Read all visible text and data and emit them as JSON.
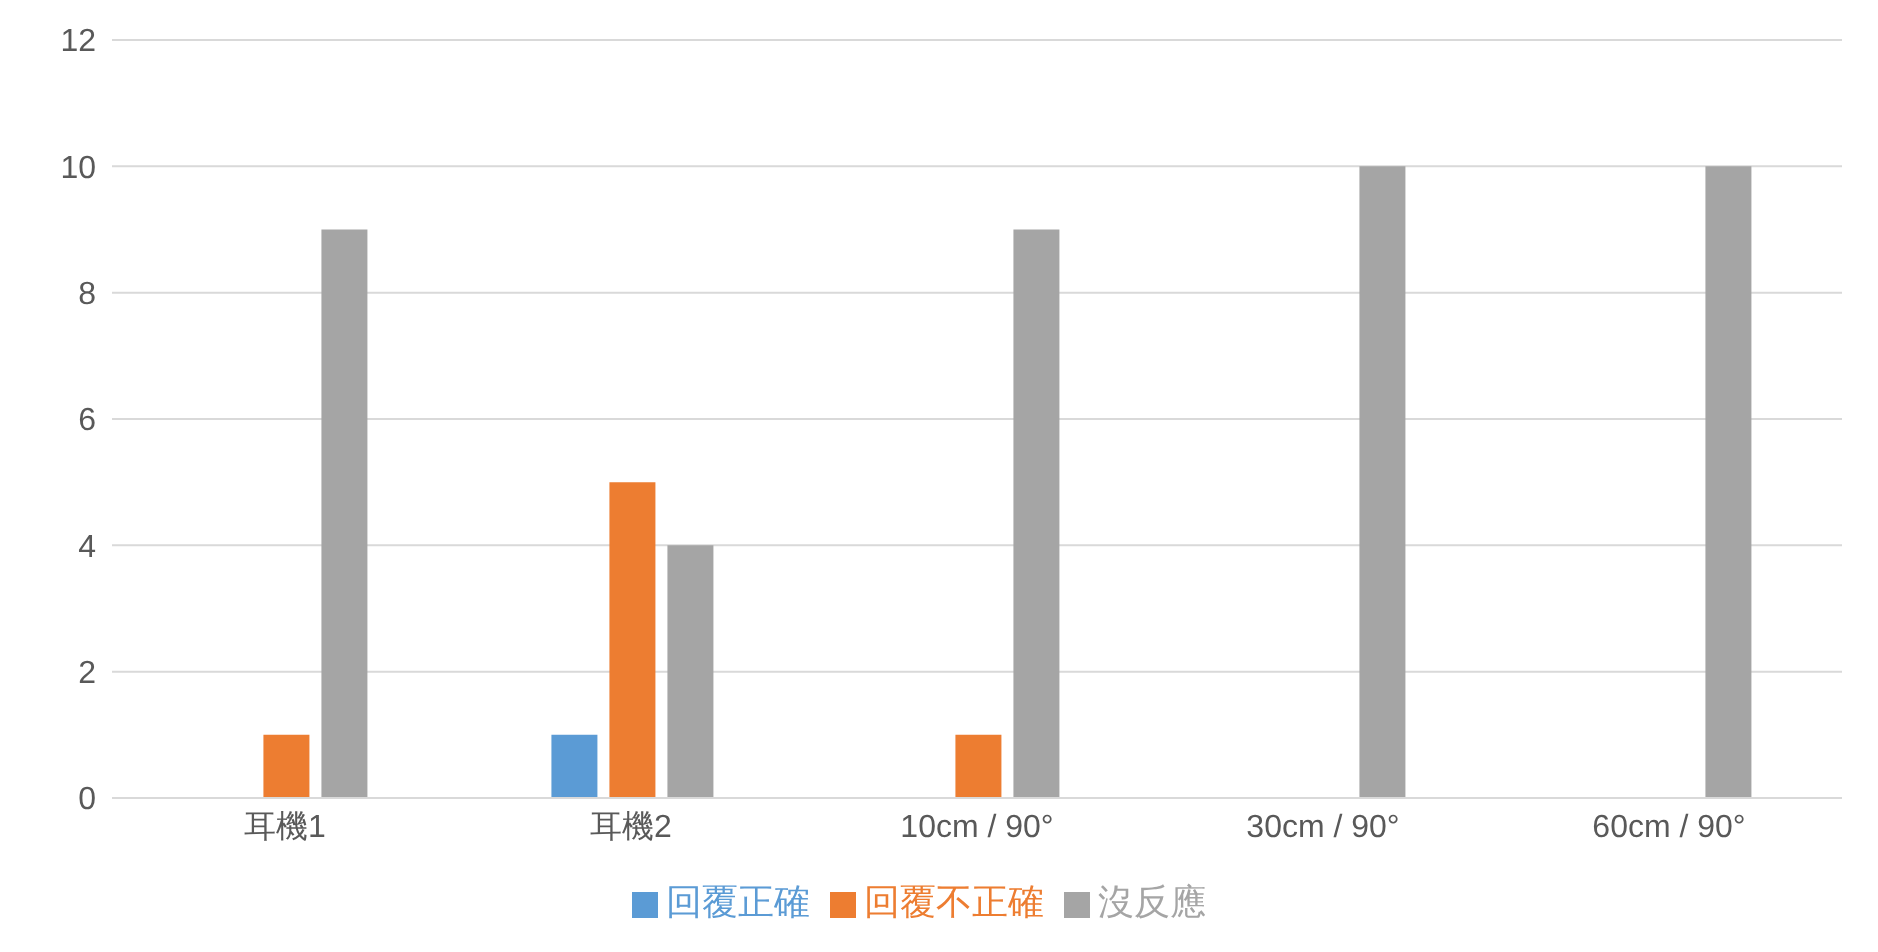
{
  "chart_data": {
    "type": "bar",
    "categories": [
      "耳機1",
      "耳機2",
      "10cm / 90°",
      "30cm / 90°",
      "60cm / 90°"
    ],
    "series": [
      {
        "name": "回覆正確",
        "color": "#5b9bd5",
        "values": [
          0,
          1,
          0,
          0,
          0
        ]
      },
      {
        "name": "回覆不正確",
        "color": "#ed7d31",
        "values": [
          1,
          5,
          1,
          0,
          0
        ]
      },
      {
        "name": "沒反應",
        "color": "#a5a5a5",
        "values": [
          9,
          4,
          9,
          10,
          10
        ]
      }
    ],
    "ylim": [
      0,
      12
    ],
    "yticks": [
      0,
      2,
      4,
      6,
      8,
      10,
      12
    ],
    "grid": "y",
    "legend": "bottom"
  }
}
